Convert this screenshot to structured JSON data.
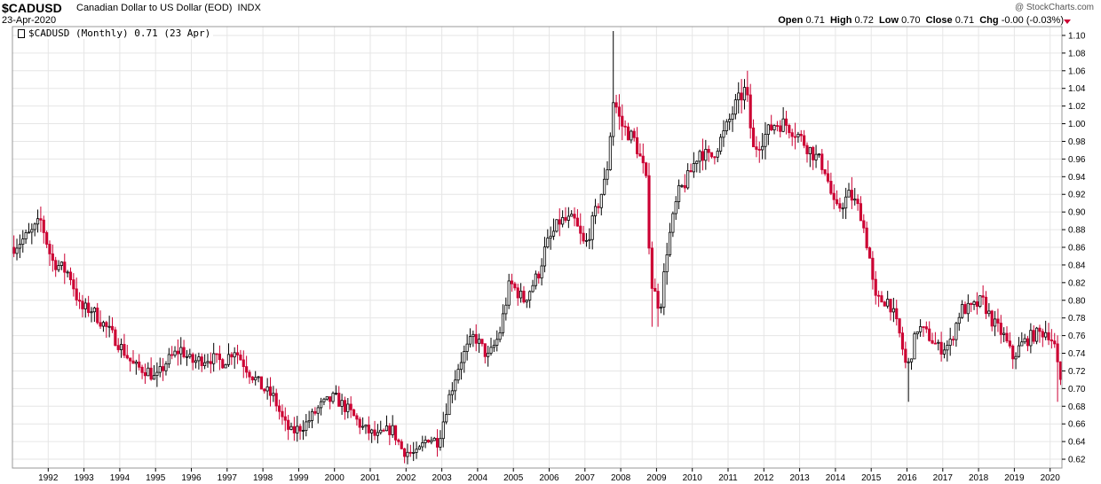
{
  "header": {
    "symbol": "$CADUSD",
    "description": "Canadian Dollar to US Dollar (EOD)",
    "exchange": "INDX",
    "date": "23-Apr-2020",
    "watermark": "@ StockCharts.com",
    "open_label": "Open",
    "open_value": "0.71",
    "high_label": "High",
    "high_value": "0.72",
    "low_label": "Low",
    "low_value": "0.70",
    "close_label": "Close",
    "close_value": "0.71",
    "chg_label": "Chg",
    "chg_value": "-0.00 (-0.03%)"
  },
  "legend": {
    "text": "$CADUSD (Monthly) 0.71 (23 Apr)"
  },
  "colors": {
    "up": "#000000",
    "down": "#cc0033",
    "grid": "#e6e6e6",
    "axis": "#000000"
  },
  "chart_data": {
    "type": "candlestick",
    "interval": "monthly",
    "grid": true,
    "y_axis_side": "right",
    "ylim": [
      0.61,
      1.11
    ],
    "y_ticks": [
      0.62,
      0.64,
      0.66,
      0.68,
      0.7,
      0.72,
      0.74,
      0.76,
      0.78,
      0.8,
      0.82,
      0.84,
      0.86,
      0.88,
      0.9,
      0.92,
      0.94,
      0.96,
      0.98,
      1.0,
      1.02,
      1.04,
      1.06,
      1.08,
      1.1
    ],
    "x_start": 1991.0,
    "x_end": 2020.33,
    "x_ticks": [
      1992,
      1993,
      1994,
      1995,
      1996,
      1997,
      1998,
      1999,
      2000,
      2001,
      2002,
      2003,
      2004,
      2005,
      2006,
      2007,
      2008,
      2009,
      2010,
      2011,
      2012,
      2013,
      2014,
      2015,
      2016,
      2017,
      2018,
      2019,
      2020
    ],
    "x_tick_labels": [
      "1992",
      "1993",
      "1994",
      "1995",
      "1996",
      "1997",
      "1998",
      "1999",
      "2000",
      "2001",
      "2002",
      "2003",
      "2004",
      "2005",
      "2006",
      "2007",
      "2008",
      "2009",
      "2010",
      "2011",
      "2012",
      "2013",
      "2014",
      "2015",
      "2016",
      "2017",
      "2018",
      "2019",
      "2020"
    ],
    "close_anchors": [
      [
        1991.0,
        0.86
      ],
      [
        1991.5,
        0.875
      ],
      [
        1991.8,
        0.89
      ],
      [
        1992.1,
        0.845
      ],
      [
        1992.6,
        0.83
      ],
      [
        1992.9,
        0.79
      ],
      [
        1993.2,
        0.79
      ],
      [
        1993.6,
        0.77
      ],
      [
        1993.9,
        0.755
      ],
      [
        1994.4,
        0.725
      ],
      [
        1994.8,
        0.72
      ],
      [
        1995.0,
        0.71
      ],
      [
        1995.3,
        0.73
      ],
      [
        1995.7,
        0.745
      ],
      [
        1996.0,
        0.73
      ],
      [
        1996.5,
        0.735
      ],
      [
        1996.9,
        0.73
      ],
      [
        1997.2,
        0.745
      ],
      [
        1997.6,
        0.72
      ],
      [
        1998.0,
        0.7
      ],
      [
        1998.3,
        0.69
      ],
      [
        1998.6,
        0.66
      ],
      [
        1998.8,
        0.65
      ],
      [
        1999.2,
        0.66
      ],
      [
        1999.6,
        0.68
      ],
      [
        2000.0,
        0.69
      ],
      [
        2000.4,
        0.675
      ],
      [
        2000.8,
        0.655
      ],
      [
        2001.2,
        0.645
      ],
      [
        2001.6,
        0.655
      ],
      [
        2001.9,
        0.63
      ],
      [
        2002.3,
        0.625
      ],
      [
        2002.6,
        0.645
      ],
      [
        2002.9,
        0.64
      ],
      [
        2003.2,
        0.69
      ],
      [
        2003.5,
        0.73
      ],
      [
        2003.9,
        0.76
      ],
      [
        2004.3,
        0.735
      ],
      [
        2004.6,
        0.76
      ],
      [
        2004.9,
        0.82
      ],
      [
        2005.3,
        0.8
      ],
      [
        2005.7,
        0.83
      ],
      [
        2005.9,
        0.86
      ],
      [
        2006.3,
        0.89
      ],
      [
        2006.7,
        0.89
      ],
      [
        2007.0,
        0.86
      ],
      [
        2007.3,
        0.9
      ],
      [
        2007.6,
        0.94
      ],
      [
        2007.8,
        1.03
      ],
      [
        2008.0,
        1.0
      ],
      [
        2008.4,
        0.98
      ],
      [
        2008.7,
        0.94
      ],
      [
        2008.85,
        0.82
      ],
      [
        2009.1,
        0.79
      ],
      [
        2009.3,
        0.86
      ],
      [
        2009.6,
        0.92
      ],
      [
        2009.9,
        0.94
      ],
      [
        2010.2,
        0.97
      ],
      [
        2010.5,
        0.96
      ],
      [
        2010.9,
        0.99
      ],
      [
        2011.2,
        1.02
      ],
      [
        2011.5,
        1.04
      ],
      [
        2011.7,
        0.97
      ],
      [
        2011.9,
        0.98
      ],
      [
        2012.3,
        1.0
      ],
      [
        2012.6,
        1.0
      ],
      [
        2012.9,
        0.99
      ],
      [
        2013.3,
        0.97
      ],
      [
        2013.7,
        0.95
      ],
      [
        2014.0,
        0.9
      ],
      [
        2014.4,
        0.92
      ],
      [
        2014.7,
        0.9
      ],
      [
        2014.95,
        0.85
      ],
      [
        2015.1,
        0.8
      ],
      [
        2015.5,
        0.8
      ],
      [
        2015.8,
        0.76
      ],
      [
        2016.0,
        0.72
      ],
      [
        2016.3,
        0.77
      ],
      [
        2016.6,
        0.76
      ],
      [
        2016.9,
        0.745
      ],
      [
        2017.2,
        0.75
      ],
      [
        2017.5,
        0.79
      ],
      [
        2017.8,
        0.79
      ],
      [
        2018.1,
        0.8
      ],
      [
        2018.4,
        0.775
      ],
      [
        2018.7,
        0.76
      ],
      [
        2018.95,
        0.735
      ],
      [
        2019.2,
        0.75
      ],
      [
        2019.5,
        0.76
      ],
      [
        2019.9,
        0.765
      ],
      [
        2020.0,
        0.76
      ],
      [
        2020.15,
        0.745
      ],
      [
        2020.25,
        0.71
      ],
      [
        2020.3,
        0.71
      ]
    ],
    "spikes": [
      {
        "x": 2007.83,
        "high": 1.105
      },
      {
        "x": 2008.85,
        "low": 0.77
      },
      {
        "x": 2009.05,
        "low": 0.77
      },
      {
        "x": 2011.55,
        "high": 1.06
      },
      {
        "x": 2016.05,
        "low": 0.685
      },
      {
        "x": 2020.22,
        "low": 0.685
      }
    ]
  }
}
